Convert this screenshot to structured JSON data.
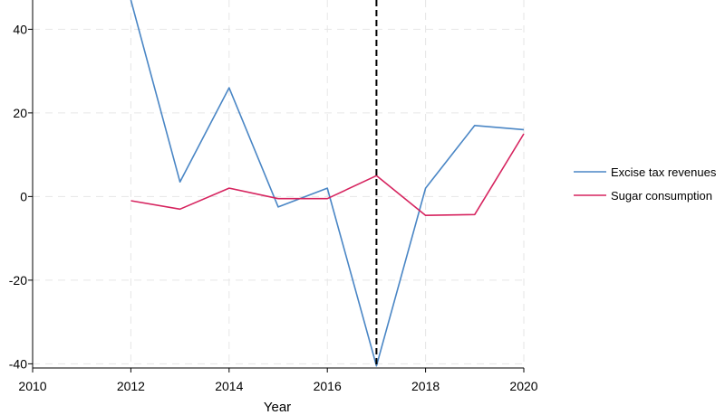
{
  "chart_data": {
    "type": "line",
    "xlabel": "Year",
    "ylabel": "",
    "xlim": [
      2010,
      2020
    ],
    "ylim": [
      -41,
      47
    ],
    "xticks": [
      2010,
      2012,
      2014,
      2016,
      2018,
      2020
    ],
    "yticks": [
      -40,
      -20,
      0,
      20,
      40
    ],
    "ytick_labels": [
      "-40",
      "-20",
      "0",
      "20",
      "40"
    ],
    "x": [
      2012,
      2013,
      2014,
      2015,
      2016,
      2017,
      2018,
      2019,
      2020
    ],
    "series": [
      {
        "name": "Excise tax revenues",
        "color": "#4a86c5",
        "values": [
          47,
          3.5,
          26,
          -2.5,
          2,
          -40.5,
          2,
          17,
          16
        ]
      },
      {
        "name": "Sugar consumption",
        "color": "#d6245f",
        "values": [
          -1,
          -3,
          2,
          -0.5,
          -0.5,
          5,
          -4.5,
          -4.3,
          15
        ]
      }
    ],
    "reference_line": {
      "x": 2017,
      "style": "dashed",
      "color": "#000000"
    },
    "grid": true,
    "legend_position": "right"
  }
}
